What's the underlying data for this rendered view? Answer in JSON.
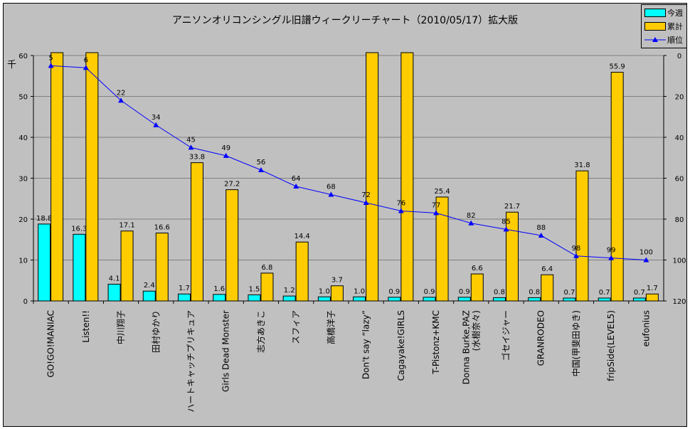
{
  "chart_data": {
    "type": "bar+line",
    "title": "アニソンオリコンシングル旧譜ウィークリーチャート（2010/05/17）拡大版",
    "ylabel": "千",
    "ylim": [
      0,
      60
    ],
    "y2lim": [
      0,
      120
    ],
    "y2_reversed": true,
    "yticks": [
      "0",
      "10",
      "20",
      "30",
      "40",
      "50",
      "60"
    ],
    "y2ticks": [
      "0",
      "20",
      "40",
      "60",
      "80",
      "100",
      "120"
    ],
    "grid": true,
    "legend": "top-right",
    "categories": [
      "GO!GO!MANIAC",
      "Listen!!",
      "中川翔子",
      "田村ゆかり",
      "ハートキャッチプリキュア",
      "Girls Dead Monster",
      "志方あきこ",
      "スフィア",
      "高橋洋子",
      "Don't say “lazy”",
      "Cagayake!GIRLS",
      "T-Pistonz+KMC",
      "Donna Burke,PAZ\n(水樹奈々)",
      "ゴセイジャー",
      "GRANRODEO",
      "中国(甲斐田ゆき)",
      "fripSide(LEVEL5)",
      "eufonius"
    ],
    "series": [
      {
        "name": "今週",
        "type": "bar",
        "color": "#00ffff",
        "values": [
          18.8,
          16.3,
          4.1,
          2.4,
          1.7,
          1.6,
          1.5,
          1.2,
          1.0,
          1.0,
          0.9,
          0.9,
          0.9,
          0.8,
          0.8,
          0.7,
          0.7,
          0.7
        ]
      },
      {
        "name": "累計",
        "type": "bar",
        "color": "#ffcc00",
        "values": [
          null,
          null,
          17.1,
          16.6,
          33.8,
          27.2,
          6.8,
          14.4,
          3.7,
          null,
          null,
          25.4,
          6.6,
          21.7,
          6.4,
          31.8,
          55.9,
          1.7
        ]
      },
      {
        "name": "順位",
        "type": "line",
        "axis": "right",
        "color": "#0000ff",
        "values": [
          5,
          6,
          22,
          34,
          45,
          49,
          56,
          64,
          68,
          72,
          76,
          77,
          82,
          85,
          88,
          98,
          99,
          100
        ]
      }
    ]
  }
}
